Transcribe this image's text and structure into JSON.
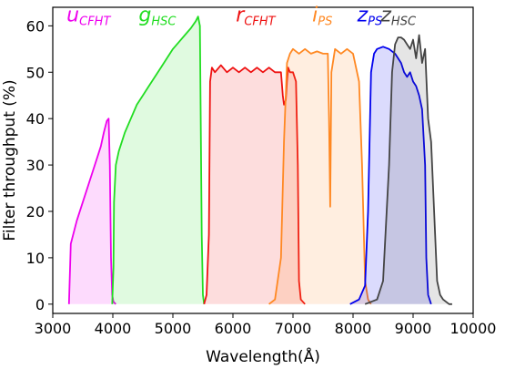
{
  "chart_data": {
    "type": "area",
    "xlabel": "Wavelength(Å)",
    "ylabel": "Filter throughput (%)",
    "xlim": [
      3000,
      10000
    ],
    "ylim": [
      -2,
      64
    ],
    "xticks": [
      3000,
      4000,
      5000,
      6000,
      7000,
      8000,
      9000,
      10000
    ],
    "yticks": [
      0,
      10,
      20,
      30,
      40,
      50,
      60
    ],
    "grid": false,
    "legend": "none",
    "series": [
      {
        "key": "u",
        "name": "u",
        "sub": "CFHT",
        "color": "#ee00ee",
        "label_pos": [
          3230,
          61
        ],
        "x": [
          3270,
          3300,
          3400,
          3500,
          3600,
          3700,
          3800,
          3850,
          3900,
          3930,
          3950,
          3970,
          3990,
          4010,
          4050
        ],
        "y": [
          0,
          13,
          18,
          22,
          26,
          30,
          34,
          37,
          39.5,
          40,
          30,
          10,
          2,
          0.5,
          0
        ]
      },
      {
        "key": "g",
        "name": "g",
        "sub": "HSC",
        "color": "#22dd22",
        "label_pos": [
          4430,
          61
        ],
        "x": [
          3990,
          4010,
          4020,
          4050,
          4100,
          4200,
          4300,
          4400,
          4500,
          4600,
          4700,
          4800,
          4900,
          5000,
          5100,
          5200,
          5300,
          5380,
          5420,
          5450,
          5480,
          5500,
          5520
        ],
        "y": [
          0,
          8,
          22,
          30,
          33,
          37,
          40,
          43,
          45,
          47,
          49,
          51,
          53,
          55,
          56.5,
          58,
          59.5,
          61,
          62,
          60,
          15,
          2,
          0
        ]
      },
      {
        "key": "r",
        "name": "r",
        "sub": "CFHT",
        "color": "#ee1111",
        "label_pos": [
          6050,
          61
        ],
        "x": [
          5520,
          5560,
          5600,
          5620,
          5650,
          5700,
          5800,
          5900,
          6000,
          6100,
          6200,
          6300,
          6400,
          6500,
          6600,
          6700,
          6800,
          6830,
          6850,
          6880,
          6900,
          6920,
          6950,
          7000,
          7050,
          7080,
          7100,
          7130,
          7200
        ],
        "y": [
          0,
          2,
          15,
          48,
          51,
          50,
          51.5,
          50,
          51,
          50,
          51,
          50,
          51,
          50,
          51,
          50,
          50,
          45,
          43,
          44,
          48,
          51,
          50,
          50,
          48,
          30,
          5,
          1,
          0
        ]
      },
      {
        "key": "i",
        "name": "i",
        "sub": "PS",
        "color": "#ff8822",
        "label_pos": [
          7320,
          61
        ],
        "x": [
          6600,
          6700,
          6800,
          6850,
          6900,
          6950,
          7000,
          7100,
          7200,
          7300,
          7400,
          7500,
          7580,
          7600,
          7620,
          7640,
          7700,
          7800,
          7900,
          8000,
          8100,
          8150,
          8200,
          8250,
          8300
        ],
        "y": [
          0,
          1,
          10,
          35,
          52,
          54,
          55,
          54,
          55,
          54,
          54.5,
          54,
          54,
          40,
          21,
          50,
          55,
          54,
          55,
          54,
          48,
          30,
          5,
          1,
          0
        ]
      },
      {
        "key": "zps",
        "name": "z",
        "sub": "PS",
        "color": "#0000ee",
        "label_pos": [
          8070,
          61
        ],
        "x": [
          7950,
          8100,
          8200,
          8250,
          8300,
          8350,
          8400,
          8500,
          8600,
          8700,
          8800,
          8850,
          8900,
          8950,
          9000,
          9050,
          9100,
          9150,
          9200,
          9220,
          9250,
          9300
        ],
        "y": [
          0,
          1,
          4,
          20,
          50,
          54,
          55,
          55.5,
          55,
          54,
          52,
          50,
          49,
          50,
          48,
          47,
          45,
          42,
          30,
          10,
          2,
          0
        ]
      },
      {
        "key": "zhsc",
        "name": "z",
        "sub": "HSC",
        "color": "#444444",
        "label_pos": [
          8460,
          61
        ],
        "x": [
          8200,
          8400,
          8500,
          8600,
          8650,
          8700,
          8750,
          8800,
          8850,
          8900,
          8950,
          9000,
          9050,
          9100,
          9150,
          9200,
          9250,
          9300,
          9350,
          9400,
          9450,
          9500,
          9600,
          9650
        ],
        "y": [
          0,
          1,
          5,
          30,
          50,
          56,
          57.5,
          57.5,
          57,
          56,
          55,
          57,
          53,
          58,
          52,
          55,
          40,
          35,
          20,
          5,
          2,
          1,
          0,
          0
        ]
      }
    ]
  }
}
